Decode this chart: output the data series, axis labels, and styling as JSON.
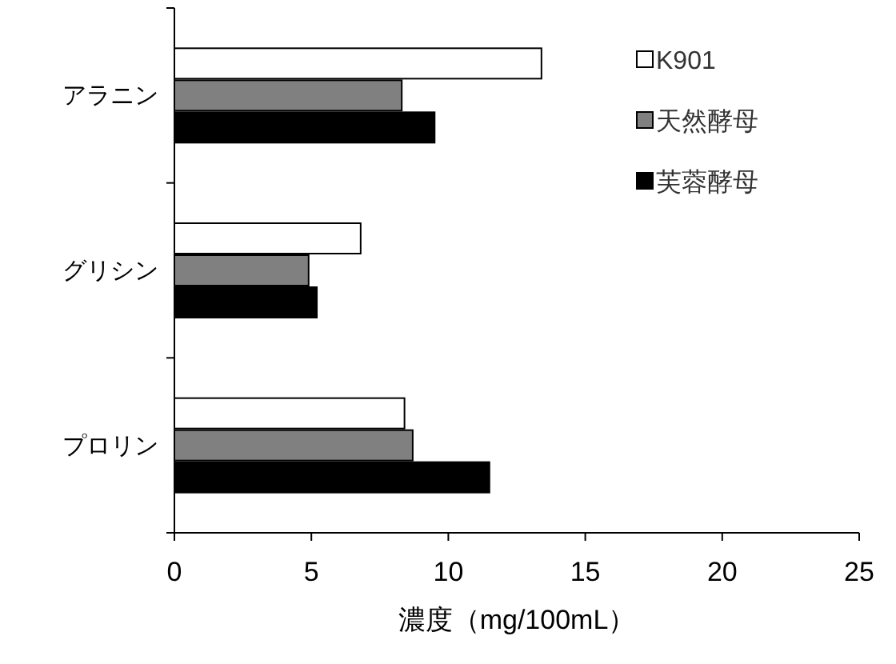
{
  "chart_data": {
    "type": "bar",
    "orientation": "horizontal",
    "xlabel": "濃度（mg/100mL）",
    "categories": [
      "アラニン",
      "グリシン",
      "プロリン"
    ],
    "series": [
      {
        "name": "K901",
        "color": "#ffffff",
        "values": [
          13.4,
          6.8,
          8.4
        ]
      },
      {
        "name": "天然酵母",
        "color": "#808080",
        "values": [
          8.3,
          4.9,
          8.7
        ]
      },
      {
        "name": "芙蓉酵母",
        "color": "#000000",
        "values": [
          9.5,
          5.2,
          11.5
        ]
      }
    ],
    "xlim": [
      0,
      25
    ],
    "xticks": [
      0,
      5,
      10,
      15,
      20,
      25
    ],
    "grid": false,
    "legend": "top right"
  }
}
